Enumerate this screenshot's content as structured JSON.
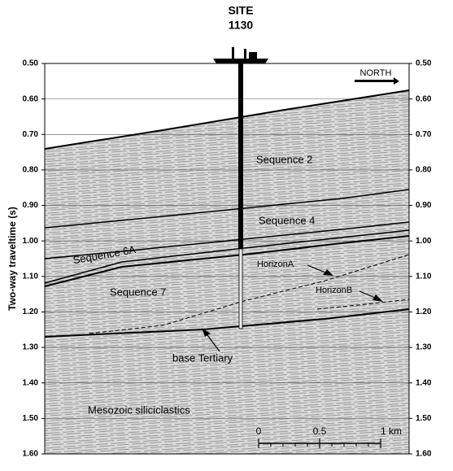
{
  "chart_data": {
    "type": "seismic-section",
    "title": [
      "SITE",
      "1130"
    ],
    "y_label": "Two-way traveltime (s)",
    "ylim": [
      0.5,
      1.6
    ],
    "yticks": [
      {
        "value": 0.5,
        "label": "0.50"
      },
      {
        "value": 0.6,
        "label": "0.60"
      },
      {
        "value": 0.7,
        "label": "0.70"
      },
      {
        "value": 0.8,
        "label": "0.80"
      },
      {
        "value": 0.9,
        "label": "0.90"
      },
      {
        "value": 1.0,
        "label": "1.00"
      },
      {
        "value": 1.1,
        "label": "1.10"
      },
      {
        "value": 1.2,
        "label": "1.20"
      },
      {
        "value": 1.3,
        "label": "1.30"
      },
      {
        "value": 1.4,
        "label": "1.40"
      },
      {
        "value": 1.5,
        "label": "1.50"
      },
      {
        "value": 1.6,
        "label": "1.60"
      }
    ],
    "grid": true,
    "north_label": "NORTH",
    "annotations": [
      "Sequence 2",
      "Sequence 4",
      "Sequence 6A",
      "Sequence 7",
      "HorizonA",
      "HorizonB",
      "base Tertiary",
      "Mesozoic siliciclastics"
    ],
    "scale_bar": {
      "lim": [
        0,
        1
      ],
      "ticks": [
        0,
        0.5,
        {
          "value": 1,
          "label": "1 km"
        }
      ]
    }
  }
}
